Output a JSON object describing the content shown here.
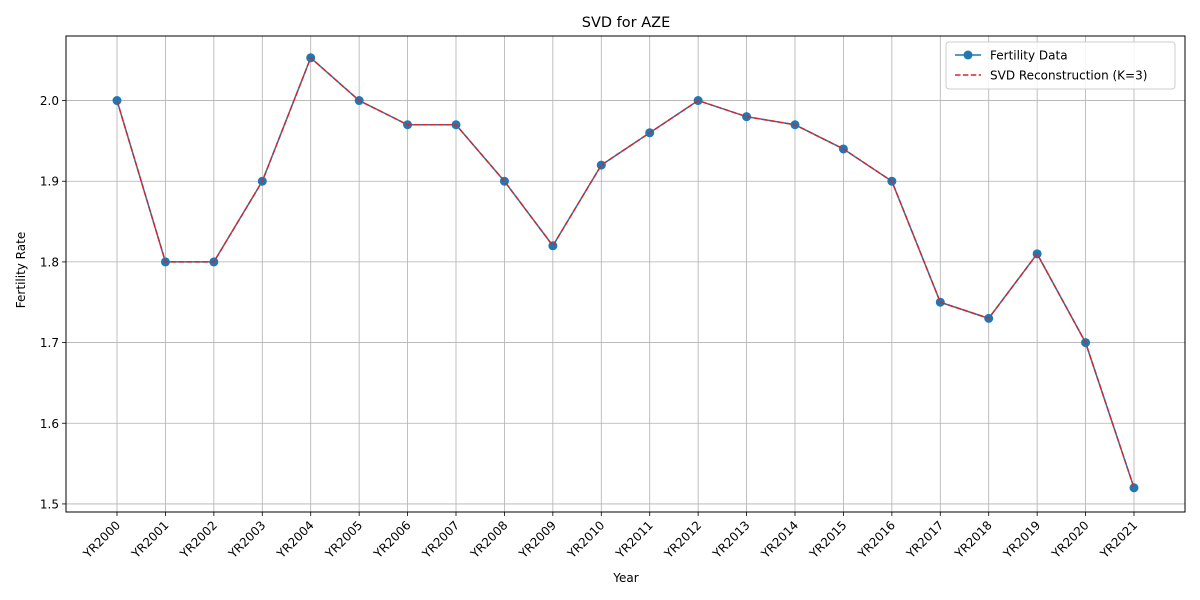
{
  "chart_data": {
    "type": "line",
    "title": "SVD for AZE",
    "xlabel": "Year",
    "ylabel": "Fertility Rate",
    "categories": [
      "YR2000",
      "YR2001",
      "YR2002",
      "YR2003",
      "YR2004",
      "YR2005",
      "YR2006",
      "YR2007",
      "YR2008",
      "YR2009",
      "YR2010",
      "YR2011",
      "YR2012",
      "YR2013",
      "YR2014",
      "YR2015",
      "YR2016",
      "YR2017",
      "YR2018",
      "YR2019",
      "YR2020",
      "YR2021"
    ],
    "ylim": [
      1.49,
      2.08
    ],
    "yticks": [
      1.5,
      1.6,
      1.7,
      1.8,
      1.9,
      2.0
    ],
    "ytick_labels": [
      "1.5",
      "1.6",
      "1.7",
      "1.8",
      "1.9",
      "2.0"
    ],
    "grid": true,
    "legend_position": "top-right",
    "series": [
      {
        "name": "Fertility Data",
        "color": "#1f77b4",
        "style": "solid",
        "marker": "circle",
        "values": [
          2.0,
          1.8,
          1.8,
          1.9,
          2.053,
          2.0,
          1.97,
          1.97,
          1.9,
          1.82,
          1.92,
          1.96,
          2.0,
          1.98,
          1.97,
          1.94,
          1.9,
          1.75,
          1.73,
          1.81,
          1.7,
          1.52
        ]
      },
      {
        "name": "SVD Reconstruction (K=3)",
        "color": "#d62728",
        "style": "dashed",
        "marker": "none",
        "values": [
          2.0,
          1.8,
          1.8,
          1.9,
          2.053,
          2.0,
          1.97,
          1.97,
          1.9,
          1.82,
          1.92,
          1.96,
          2.0,
          1.98,
          1.97,
          1.94,
          1.9,
          1.75,
          1.73,
          1.81,
          1.7,
          1.52
        ]
      }
    ]
  }
}
